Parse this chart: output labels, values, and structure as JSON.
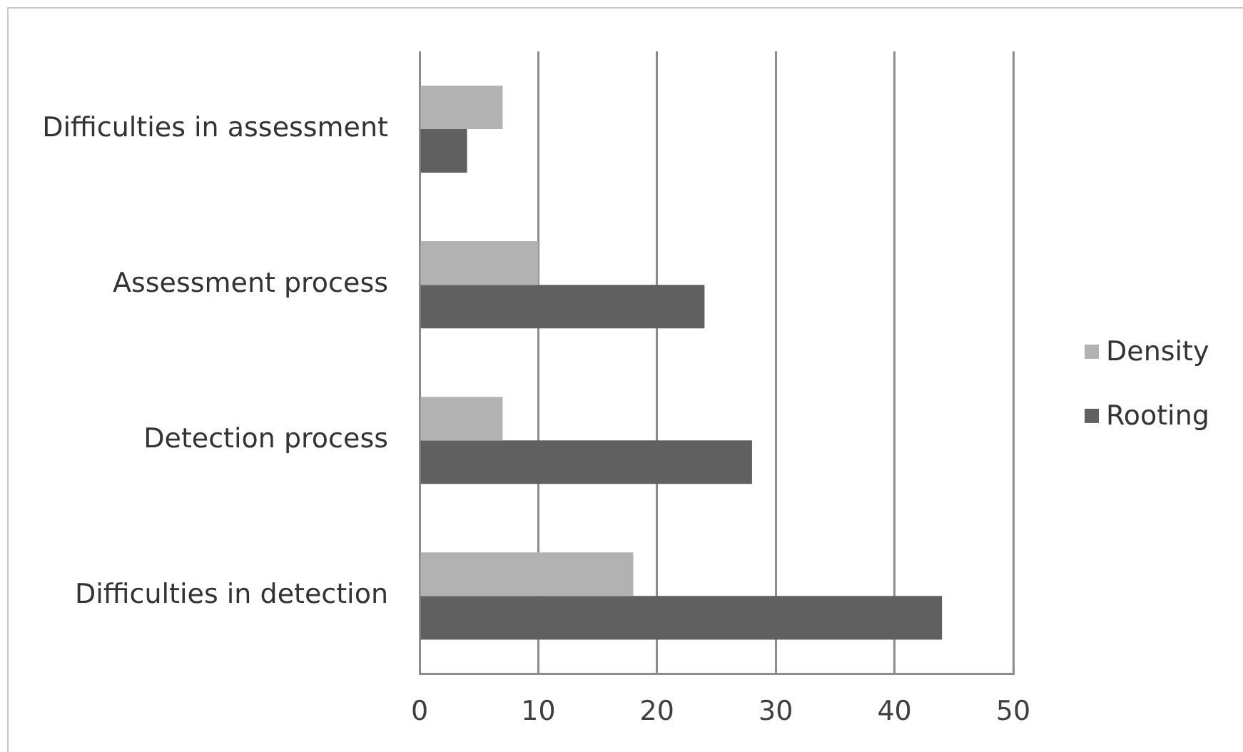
{
  "chart_data": {
    "type": "bar",
    "orientation": "horizontal",
    "categories": [
      "Difficulties in assessment",
      "Assessment process",
      "Detection process",
      "Difficulties in detection"
    ],
    "series": [
      {
        "name": "Density",
        "color": "#b2b2b2",
        "values": [
          7,
          10,
          7,
          18
        ]
      },
      {
        "name": "Rooting",
        "color": "#606060",
        "values": [
          4,
          24,
          28,
          44
        ]
      }
    ],
    "xlim": [
      0,
      50
    ],
    "xticks": [
      0,
      10,
      20,
      30,
      40,
      50
    ],
    "grid": "x",
    "legend": "right"
  }
}
